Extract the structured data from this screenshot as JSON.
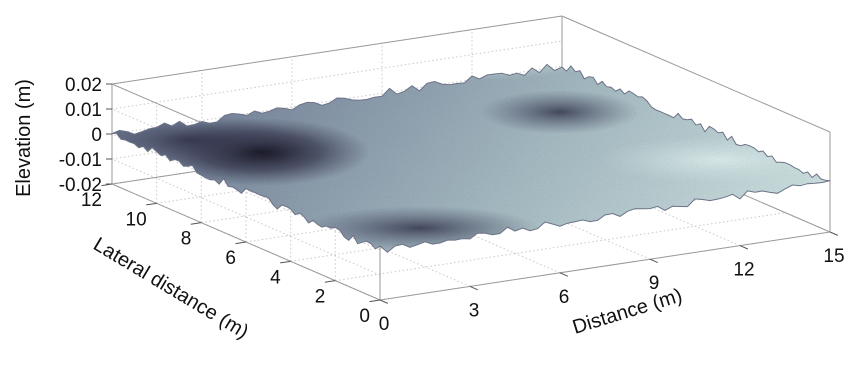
{
  "chart_data": {
    "type": "surface",
    "xlabel": "Distance (m)",
    "ylabel": "Lateral distance (m)",
    "zlabel": "Elevation (m)",
    "x_ticks": [
      0,
      3,
      6,
      9,
      12,
      15
    ],
    "y_ticks": [
      0,
      2,
      4,
      6,
      8,
      10,
      12
    ],
    "z_ticks": [
      0.02,
      0.01,
      0,
      -0.01,
      -0.02
    ],
    "z_tick_labels": [
      "0.02",
      "0.01",
      "0",
      "-0.01",
      "-0.02"
    ],
    "xlim": [
      0,
      15
    ],
    "ylim": [
      0,
      12
    ],
    "zlim": [
      -0.02,
      0.02
    ],
    "grid": true,
    "colormap": [
      "#1f1c2c",
      "#4a4e6a",
      "#6f7a90",
      "#9fb3bc",
      "#d7ebeb"
    ]
  }
}
